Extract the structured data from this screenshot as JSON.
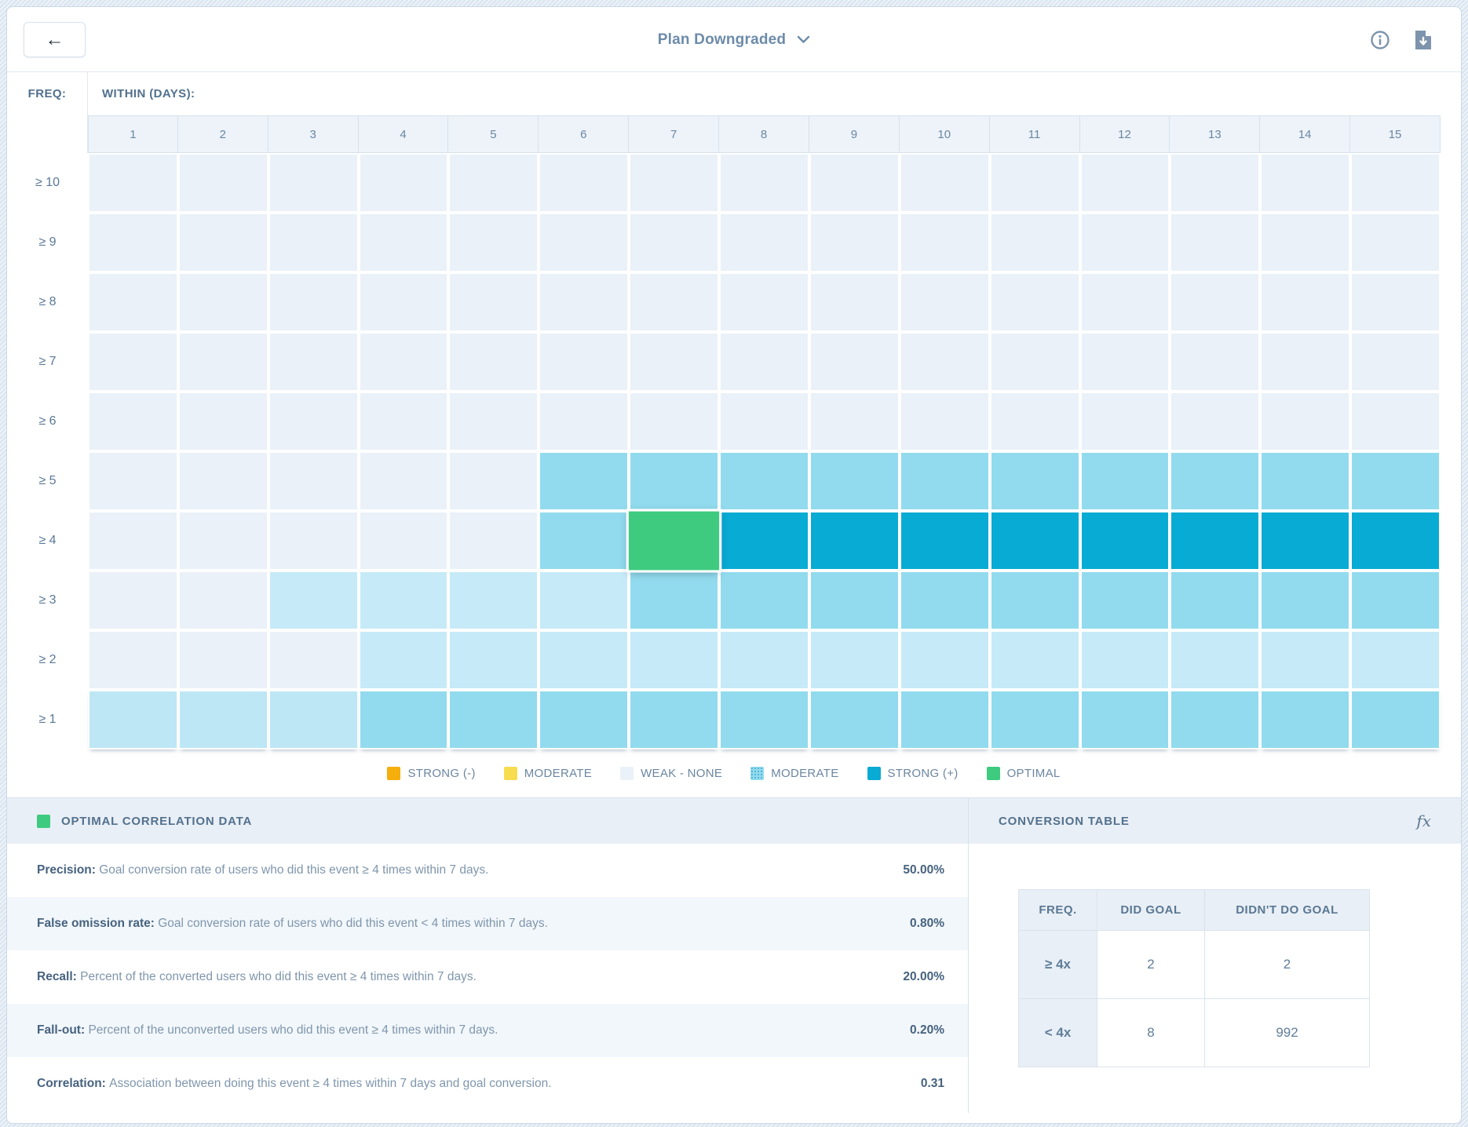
{
  "header": {
    "back_label": "←",
    "title": "Plan Downgraded"
  },
  "heatmap": {
    "freq_label": "FREQ:",
    "days_label": "WITHIN (DAYS):",
    "columns": [
      "1",
      "2",
      "3",
      "4",
      "5",
      "6",
      "7",
      "8",
      "9",
      "10",
      "11",
      "12",
      "13",
      "14",
      "15"
    ],
    "palette": {
      "w": "#EAF1F8",
      "l": "#C6EAF7",
      "b": "#BEE7F5",
      "m": "#92DBEE",
      "s": "#08ABD3",
      "o": "#3ECB80"
    },
    "rows": [
      {
        "label": "≥ 10",
        "cells": [
          "w",
          "w",
          "w",
          "w",
          "w",
          "w",
          "w",
          "w",
          "w",
          "w",
          "w",
          "w",
          "w",
          "w",
          "w"
        ]
      },
      {
        "label": "≥ 9",
        "cells": [
          "w",
          "w",
          "w",
          "w",
          "w",
          "w",
          "w",
          "w",
          "w",
          "w",
          "w",
          "w",
          "w",
          "w",
          "w"
        ]
      },
      {
        "label": "≥ 8",
        "cells": [
          "w",
          "w",
          "w",
          "w",
          "w",
          "w",
          "w",
          "w",
          "w",
          "w",
          "w",
          "w",
          "w",
          "w",
          "w"
        ]
      },
      {
        "label": "≥ 7",
        "cells": [
          "w",
          "w",
          "w",
          "w",
          "w",
          "w",
          "w",
          "w",
          "w",
          "w",
          "w",
          "w",
          "w",
          "w",
          "w"
        ]
      },
      {
        "label": "≥ 6",
        "cells": [
          "w",
          "w",
          "w",
          "w",
          "w",
          "w",
          "w",
          "w",
          "w",
          "w",
          "w",
          "w",
          "w",
          "w",
          "w"
        ]
      },
      {
        "label": "≥ 5",
        "cells": [
          "w",
          "w",
          "w",
          "w",
          "w",
          "m",
          "m",
          "m",
          "m",
          "m",
          "m",
          "m",
          "m",
          "m",
          "m"
        ]
      },
      {
        "label": "≥ 4",
        "cells": [
          "w",
          "w",
          "w",
          "w",
          "w",
          "m",
          "o",
          "s",
          "s",
          "s",
          "s",
          "s",
          "s",
          "s",
          "s"
        ]
      },
      {
        "label": "≥ 3",
        "cells": [
          "w",
          "w",
          "l",
          "l",
          "l",
          "l",
          "m",
          "m",
          "m",
          "m",
          "m",
          "m",
          "m",
          "m",
          "m"
        ]
      },
      {
        "label": "≥ 2",
        "cells": [
          "w",
          "w",
          "w",
          "l",
          "l",
          "l",
          "l",
          "l",
          "l",
          "l",
          "l",
          "l",
          "l",
          "l",
          "l"
        ]
      },
      {
        "label": "≥ 1",
        "cells": [
          "b",
          "b",
          "b",
          "m",
          "m",
          "m",
          "m",
          "m",
          "m",
          "m",
          "m",
          "m",
          "m",
          "m",
          "m"
        ]
      }
    ]
  },
  "legend": {
    "items": [
      {
        "label": "STRONG (-)",
        "color": "#F5AE0C",
        "pattern": false
      },
      {
        "label": "MODERATE",
        "color": "#F8DC4F",
        "pattern": false
      },
      {
        "label": "WEAK - NONE",
        "color": "#EAF1F8",
        "pattern": false
      },
      {
        "label": "MODERATE",
        "color": "#92DBEE",
        "pattern": true
      },
      {
        "label": "STRONG (+)",
        "color": "#08ABD3",
        "pattern": false
      },
      {
        "label": "OPTIMAL",
        "color": "#3ECB80",
        "pattern": false
      }
    ]
  },
  "optimal_panel": {
    "title": "OPTIMAL CORRELATION DATA",
    "swatch_color": "#3ECB80",
    "metrics": [
      {
        "name": "Precision: ",
        "desc": "Goal conversion rate of users who did this event ≥ 4 times within 7 days.",
        "value": "50.00%"
      },
      {
        "name": "False omission rate: ",
        "desc": "Goal conversion rate of users who did this event < 4 times within 7 days.",
        "value": "0.80%"
      },
      {
        "name": "Recall: ",
        "desc": "Percent of the converted users who did this event ≥ 4 times within 7 days.",
        "value": "20.00%"
      },
      {
        "name": "Fall-out: ",
        "desc": "Percent of the unconverted users who did this event ≥ 4 times within 7 days.",
        "value": "0.20%"
      },
      {
        "name": "Correlation: ",
        "desc": "Association between doing this event ≥ 4 times within 7 days and goal conversion.",
        "value": "0.31"
      }
    ]
  },
  "conversion_panel": {
    "title": "CONVERSION TABLE",
    "fx_label": "fx",
    "table": {
      "headers": [
        "FREQ.",
        "DID GOAL",
        "DIDN'T DO GOAL"
      ],
      "rows": [
        {
          "freq": "≥ 4x",
          "did": "2",
          "didnt": "2"
        },
        {
          "freq": "< 4x",
          "did": "8",
          "didnt": "992"
        }
      ]
    }
  }
}
